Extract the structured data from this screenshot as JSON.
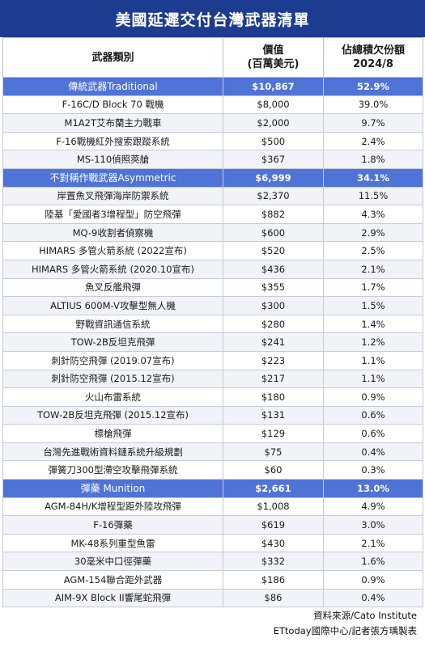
{
  "title": "美國延遲交付台灣武器清單",
  "headers": {
    "category": "武器類別",
    "value_line1": "價值",
    "value_line2": "(百萬美元)",
    "share_line1": "佔總積欠份額",
    "share_line2": "2024/8"
  },
  "rows": [
    {
      "type": "cat",
      "name": "傳統武器Traditional",
      "value": "$10,867",
      "share": "52.9%"
    },
    {
      "type": "item",
      "name": "F-16C/D Block 70 戰機",
      "value": "$8,000",
      "share": "39.0%"
    },
    {
      "type": "item",
      "name": "M1A2T艾布蘭主力戰車",
      "value": "$2,000",
      "share": "9.7%"
    },
    {
      "type": "item",
      "name": "F-16戰機紅外搜索跟蹤系統",
      "value": "$500",
      "share": "2.4%"
    },
    {
      "type": "item",
      "name": "MS-110偵照莢艙",
      "value": "$367",
      "share": "1.8%"
    },
    {
      "type": "cat",
      "name": "不對稱作戰武器Asymmetric",
      "value": "$6,999",
      "share": "34.1%"
    },
    {
      "type": "item",
      "name": "岸置魚叉飛彈海岸防禦系統",
      "value": "$2,370",
      "share": "11.5%"
    },
    {
      "type": "item",
      "name": "陸基「愛國者3增程型」防空飛彈",
      "value": "$882",
      "share": "4.3%"
    },
    {
      "type": "item",
      "name": "MQ-9收割者偵察機",
      "value": "$600",
      "share": "2.9%"
    },
    {
      "type": "item",
      "name": "HIMARS 多管火箭系統 (2022宣布)",
      "value": "$520",
      "share": "2.5%"
    },
    {
      "type": "item",
      "name": "HIMARS 多管火箭系統 (2020.10宣布)",
      "value": "$436",
      "share": "2.1%"
    },
    {
      "type": "item",
      "name": "魚叉反艦飛彈",
      "value": "$355",
      "share": "1.7%"
    },
    {
      "type": "item",
      "name": "ALTIUS 600M-V攻擊型無人機",
      "value": "$300",
      "share": "1.5%"
    },
    {
      "type": "item",
      "name": "野戰資訊通信系統",
      "value": "$280",
      "share": "1.4%"
    },
    {
      "type": "item",
      "name": "TOW-2B反坦克飛彈",
      "value": "$241",
      "share": "1.2%"
    },
    {
      "type": "item",
      "name": "刺針防空飛彈 (2019.07宣布)",
      "value": "$223",
      "share": "1.1%"
    },
    {
      "type": "item",
      "name": "刺針防空飛彈 (2015.12宣布)",
      "value": "$217",
      "share": "1.1%"
    },
    {
      "type": "item",
      "name": "火山布雷系統",
      "value": "$180",
      "share": "0.9%"
    },
    {
      "type": "item",
      "name": "TOW-2B反坦克飛彈 (2015.12宣布)",
      "value": "$131",
      "share": "0.6%"
    },
    {
      "type": "item",
      "name": "標槍飛彈",
      "value": "$129",
      "share": "0.6%"
    },
    {
      "type": "item",
      "name": "台灣先進戰術資料鏈系統升級規劃",
      "value": "$75",
      "share": "0.4%"
    },
    {
      "type": "item",
      "name": "彈簧刀300型滯空攻擊飛彈系統",
      "value": "$60",
      "share": "0.3%"
    },
    {
      "type": "cat",
      "name": "彈藥 Munition",
      "value": "$2,661",
      "share": "13.0%"
    },
    {
      "type": "item",
      "name": "AGM-84H/K增程型距外陸攻飛彈",
      "value": "$1,008",
      "share": "4.9%"
    },
    {
      "type": "item",
      "name": "F-16彈藥",
      "value": "$619",
      "share": "3.0%"
    },
    {
      "type": "item",
      "name": "MK-48系列重型魚雷",
      "value": "$430",
      "share": "2.1%"
    },
    {
      "type": "item",
      "name": "30毫米中口徑彈藥",
      "value": "$332",
      "share": "1.6%"
    },
    {
      "type": "item",
      "name": "AGM-154聯合距外武器",
      "value": "$186",
      "share": "0.9%"
    },
    {
      "type": "item",
      "name": "AIM-9X Block II響尾蛇飛彈",
      "value": "$86",
      "share": "0.4%"
    }
  ],
  "footer": {
    "source": "資料來源/Cato Institute",
    "credit": "ETtoday國際中心/記者張方瑀製表"
  },
  "colors": {
    "title_bg": "#1d3c8f",
    "category_bg": "#4f73d6"
  }
}
